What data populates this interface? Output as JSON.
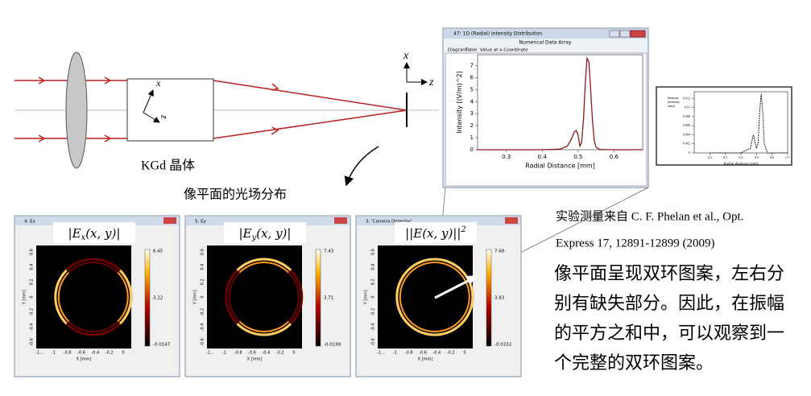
{
  "diagram": {
    "axis_x": "x",
    "axis_z": "z",
    "crystal_axis_x": "x",
    "crystal_axis_z": "z",
    "crystal_label": "KGd 晶体",
    "image_plane_label": "像平面的光场分布"
  },
  "radial_window": {
    "title": "47: 1D (Radial) Intensity Distribution",
    "subtitle": "Numerical Data Array",
    "tabs": [
      "Diagram",
      "Table",
      "Value at x-Coordinate"
    ],
    "chart_data": {
      "type": "line",
      "x_label": "Radial Distance [mm]",
      "y_label": "Intensity [(V/m)^2]",
      "x": [
        0.22,
        0.3,
        0.4,
        0.45,
        0.47,
        0.48,
        0.49,
        0.495,
        0.5,
        0.505,
        0.51,
        0.515,
        0.52,
        0.525,
        0.53,
        0.535,
        0.54,
        0.545,
        0.55,
        0.56,
        0.6,
        0.68
      ],
      "series": [
        {
          "name": "Intensity",
          "color": "#8b1a1a",
          "values": [
            0,
            0,
            0,
            0.05,
            0.3,
            0.8,
            1.5,
            1.6,
            1.2,
            0.3,
            0.6,
            2.5,
            5.5,
            7.6,
            7.3,
            5,
            2.5,
            0.8,
            0.2,
            0.02,
            0,
            0
          ]
        }
      ],
      "xlim": [
        0.22,
        0.68
      ],
      "ylim": [
        0,
        7.9
      ],
      "xticks": [
        0.3,
        0.4,
        0.5,
        0.6
      ],
      "yticks": [
        0,
        1,
        2,
        3,
        4,
        5,
        6,
        7
      ]
    }
  },
  "experiment_plot": {
    "chart_data": {
      "type": "line",
      "x_label": "Radial distance (mm)",
      "y_label": "Intensity (arbitrary units)",
      "x": [
        0.2,
        0.4,
        0.46,
        0.48,
        0.5,
        0.51,
        0.52,
        0.53,
        0.54,
        0.55,
        0.57,
        0.7
      ],
      "series": [
        {
          "name": "Experiment",
          "color": "#222222",
          "values": [
            0,
            0,
            0.001,
            0.004,
            0.001,
            0.002,
            0.009,
            0.013,
            0.009,
            0.002,
            0,
            0
          ]
        }
      ],
      "xlim": [
        0.1,
        0.7
      ],
      "ylim": [
        0,
        0.0135
      ],
      "xticks": [
        0.2,
        0.3,
        0.4,
        0.5,
        0.6,
        0.7
      ],
      "yticks": [
        0,
        0.002,
        0.004,
        0.006,
        0.008,
        0.01,
        0.012
      ]
    }
  },
  "heatmap_axes": {
    "x_label": "X [mm]",
    "y_label": "Y [mm]",
    "x_ticks": [
      "-1...",
      "-1",
      "-0.8",
      "-0.6",
      "-0.4",
      "-0.2",
      "0"
    ],
    "y_ticks": [
      "0.6",
      "0.4",
      "0.2",
      "0",
      "-0.2",
      "-0.4",
      "-0.6"
    ]
  },
  "panels": [
    {
      "title": "4: Ex",
      "formula": [
        "|E",
        "x",
        "(x, y)|",
        ""
      ],
      "colorbar": [
        "6.45",
        "3.22",
        "-0.0147"
      ]
    },
    {
      "title": "5: Ey",
      "formula": [
        "|E",
        "y",
        "(x, y)|",
        ""
      ],
      "colorbar": [
        "7.43",
        "3.71",
        "-0.0199"
      ]
    },
    {
      "title": "3: 'Camera Detector'",
      "formula": [
        "||E(x, y)||",
        "",
        "",
        "2"
      ],
      "colorbar": [
        "7.68",
        "3.83",
        "-0.0332"
      ]
    }
  ],
  "reference": [
    "实验测量来自 C. F. Phelan et al., Opt.",
    "Express 17, 12891-12899 (2009)"
  ],
  "description": [
    "像平面呈现双环图案，左右分",
    "别有缺失部分。因此，在振幅",
    "的平方之和中，可以观察到一",
    "个完整的双环图案。"
  ]
}
